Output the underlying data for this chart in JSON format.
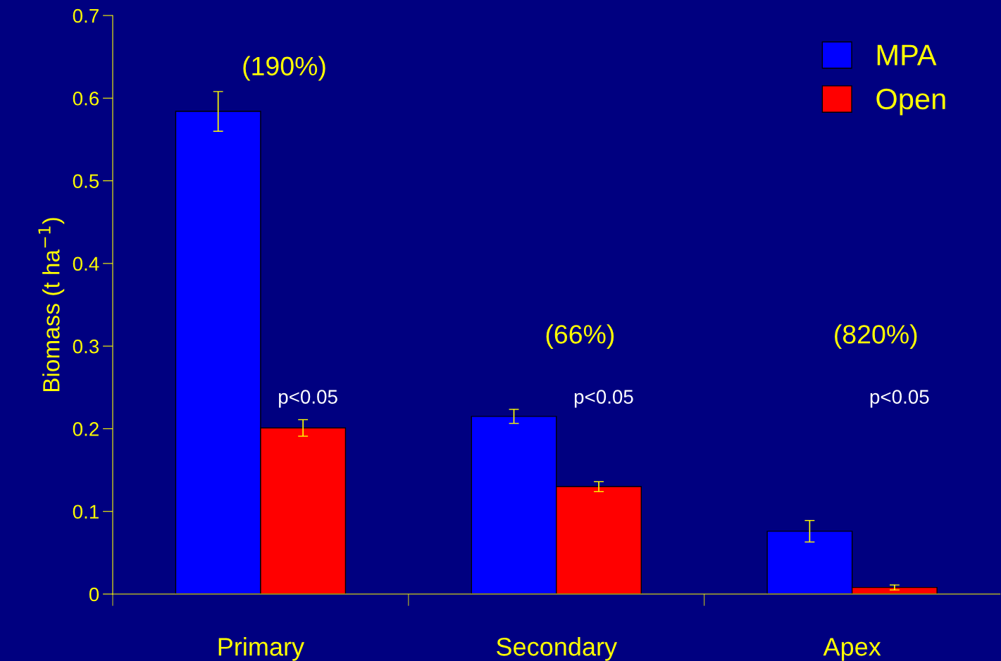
{
  "chart_data": {
    "type": "bar",
    "ylabel": "Biomass (t ha$^{−1}$)",
    "categories": [
      "Primary",
      "Secondary",
      "Apex"
    ],
    "series": [
      {
        "name": "MPA",
        "color": "#0000ff",
        "values": [
          0.584,
          0.215,
          0.076
        ],
        "errors": [
          0.024,
          0.0085,
          0.013
        ]
      },
      {
        "name": "Open",
        "color": "#ff0000",
        "values": [
          0.201,
          0.13,
          0.008
        ],
        "errors": [
          0.01,
          0.006,
          0.003
        ]
      }
    ],
    "ylim": [
      0,
      0.7
    ],
    "yticks": [
      0,
      0.1,
      0.2,
      0.3,
      0.4,
      0.5,
      0.6,
      0.7
    ],
    "grid": false,
    "legend": "top right",
    "annotations": [
      "(190%)",
      "p<0.05",
      "(66%)",
      "p<0.05",
      "(820%)",
      "p<0.05"
    ]
  }
}
